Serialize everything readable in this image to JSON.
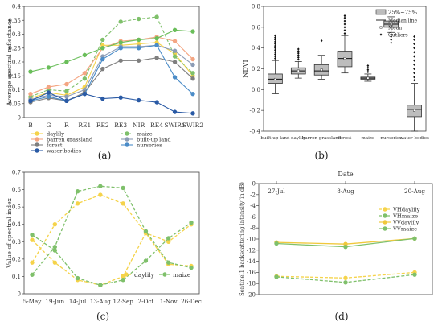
{
  "chart_data": [
    {
      "id": "a",
      "type": "line",
      "panel_label": "(a)",
      "ylabel": "Average spectral reflectance",
      "categories": [
        "B",
        "G",
        "R",
        "RE1",
        "RE2",
        "RE3",
        "NIR",
        "RE4",
        "SWIR1",
        "SWIR2"
      ],
      "ylim": [
        0,
        0.4
      ],
      "yticks": [
        "0",
        "0.05",
        "0.1",
        "0.15",
        "0.2",
        "0.25",
        "0.3",
        "0.35",
        "0.4"
      ],
      "series": [
        {
          "name": "daylily",
          "color": "#f5d34a",
          "dash": false,
          "values": [
            0.07,
            0.09,
            0.08,
            0.11,
            0.26,
            0.26,
            0.265,
            0.27,
            0.23,
            0.15
          ]
        },
        {
          "name": "maize",
          "color": "#7fc06b",
          "dash": true,
          "values": [
            0.075,
            0.1,
            0.095,
            0.14,
            0.28,
            0.345,
            0.355,
            0.362,
            0.22,
            0.16
          ]
        },
        {
          "name": "barren grassland",
          "color": "#f4a582",
          "dash": false,
          "values": [
            0.085,
            0.11,
            0.12,
            0.16,
            0.25,
            0.275,
            0.28,
            0.29,
            0.275,
            0.21
          ]
        },
        {
          "name": "built-up land",
          "color": "#8c9cb5",
          "dash": false,
          "values": [
            0.065,
            0.08,
            0.075,
            0.1,
            0.22,
            0.255,
            0.255,
            0.26,
            0.24,
            0.19
          ]
        },
        {
          "name": "forest",
          "color": "#7f7f7f",
          "dash": false,
          "values": [
            0.055,
            0.07,
            0.06,
            0.09,
            0.175,
            0.205,
            0.205,
            0.215,
            0.2,
            0.14
          ]
        },
        {
          "name": "nurseries",
          "color": "#4b8cc8",
          "dash": false,
          "values": [
            0.06,
            0.075,
            0.06,
            0.085,
            0.21,
            0.25,
            0.25,
            0.26,
            0.145,
            0.085
          ]
        },
        {
          "name": "water bodies",
          "color": "#2a5aa5",
          "dash": false,
          "values": [
            0.06,
            0.09,
            0.06,
            0.085,
            0.068,
            0.072,
            0.062,
            0.055,
            0.02,
            0.015
          ]
        },
        {
          "name": "",
          "color": "#6abe5a",
          "dash": false,
          "values": [
            0.165,
            0.18,
            0.2,
            0.225,
            0.25,
            0.27,
            0.28,
            0.285,
            0.315,
            0.31
          ]
        }
      ]
    },
    {
      "id": "b",
      "type": "box",
      "panel_label": "(b)",
      "ylabel": "NDVI",
      "categories": [
        "built-up land",
        "daylily",
        "barren grassland",
        "forest",
        "maize",
        "nurseries",
        "water bodies"
      ],
      "ylim": [
        -0.4,
        0.8
      ],
      "yticks": [
        "-0.4",
        "-0.2",
        "0.0",
        "0.2",
        "0.4",
        "0.6",
        "0.8"
      ],
      "legend": {
        "box": "25%~75%",
        "median": "Median line",
        "mean": "Mean",
        "outliers": "Outliers"
      },
      "boxes": [
        {
          "min": -0.04,
          "q1": 0.06,
          "median": 0.1,
          "q3": 0.15,
          "max": 0.28,
          "mean": 0.1,
          "outliers": [
            0.3,
            0.32,
            0.34,
            0.36,
            0.38,
            0.4,
            0.42,
            0.44,
            0.46,
            0.48,
            0.5,
            0.52
          ]
        },
        {
          "min": 0.11,
          "q1": 0.15,
          "median": 0.18,
          "q3": 0.21,
          "max": 0.27,
          "mean": 0.18,
          "outliers": [
            0.29,
            0.31,
            0.33,
            0.35,
            0.37,
            0.39
          ]
        },
        {
          "min": 0.1,
          "q1": 0.14,
          "median": 0.18,
          "q3": 0.24,
          "max": 0.33,
          "mean": 0.19,
          "outliers": [
            0.47
          ]
        },
        {
          "min": 0.16,
          "q1": 0.22,
          "median": 0.3,
          "q3": 0.37,
          "max": 0.52,
          "mean": 0.3,
          "outliers": [
            0.54,
            0.57,
            0.6,
            0.63,
            0.66,
            0.69,
            0.71
          ]
        },
        {
          "min": 0.08,
          "q1": 0.1,
          "median": 0.11,
          "q3": 0.12,
          "max": 0.15,
          "mean": 0.11,
          "outliers": [
            0.17,
            0.19,
            0.21,
            0.23
          ]
        },
        {
          "min": 0.55,
          "q1": 0.6,
          "median": 0.63,
          "q3": 0.66,
          "max": 0.7,
          "mean": 0.63,
          "outliers": [
            0.45,
            0.48,
            0.51,
            0.53
          ]
        },
        {
          "min": -0.4,
          "q1": -0.26,
          "median": -0.19,
          "q3": -0.15,
          "max": 0.06,
          "mean": -0.2,
          "outliers": [
            0.09,
            0.12,
            0.16,
            0.2,
            0.24,
            0.28,
            0.32,
            0.36,
            0.4,
            0.44,
            0.48,
            0.51
          ]
        }
      ]
    },
    {
      "id": "c",
      "type": "line",
      "panel_label": "(c)",
      "ylabel": "Value of spectral index",
      "categories": [
        "5-May",
        "19-Jun",
        "14-Jul",
        "13-Aug",
        "12-Sep",
        "2-Oct",
        "1-Nov",
        "26-Dec"
      ],
      "ylim": [
        0,
        0.7
      ],
      "yticks": [
        "0",
        "0.1",
        "0.2",
        "0.3",
        "0.4",
        "0.5",
        "0.6",
        "0.7"
      ],
      "series": [
        {
          "name": "daylily",
          "color": "#f5d34a",
          "dash": true,
          "values": [
            0.31,
            0.18,
            0.08,
            0.05,
            0.1,
            0.35,
            0.17,
            0.16
          ]
        },
        {
          "name": "daylily",
          "color": "#f5d34a",
          "dash": true,
          "values": [
            0.18,
            0.4,
            0.52,
            0.57,
            0.52,
            0.35,
            0.3,
            0.4
          ]
        },
        {
          "name": "maize",
          "color": "#7fc06b",
          "dash": true,
          "values": [
            0.34,
            0.25,
            0.09,
            0.05,
            0.08,
            0.19,
            0.32,
            0.41
          ]
        },
        {
          "name": "maize",
          "color": "#7fc06b",
          "dash": true,
          "values": [
            0.11,
            0.27,
            0.59,
            0.62,
            0.61,
            0.36,
            0.18,
            0.15
          ]
        }
      ],
      "legend": [
        {
          "name": "daylily",
          "color": "#f5d34a"
        },
        {
          "name": "maize",
          "color": "#7fc06b"
        }
      ]
    },
    {
      "id": "d",
      "type": "line",
      "panel_label": "(d)",
      "title": "Date",
      "ylabel": "Sentinel1 backscattering intensity(in dB)",
      "categories": [
        "27-Jul",
        "8-Aug",
        "20-Aug"
      ],
      "ylim": [
        -20,
        0
      ],
      "yticks": [
        "0",
        "-2",
        "-4",
        "-6",
        "-8",
        "-10",
        "-12",
        "-14",
        "-16",
        "-18",
        "-20"
      ],
      "series": [
        {
          "name": "VHdaylily",
          "color": "#f5d34a",
          "dash": true,
          "values": [
            -16.7,
            -17,
            -16
          ]
        },
        {
          "name": "VHmaize",
          "color": "#7fc06b",
          "dash": true,
          "values": [
            -16.8,
            -17.8,
            -16.4
          ]
        },
        {
          "name": "VVdaylily",
          "color": "#f0c83c",
          "dash": false,
          "values": [
            -10.6,
            -10.9,
            -9.9
          ]
        },
        {
          "name": "VVmaize",
          "color": "#7fc06b",
          "dash": false,
          "values": [
            -10.8,
            -11.4,
            -9.9
          ]
        }
      ]
    }
  ]
}
